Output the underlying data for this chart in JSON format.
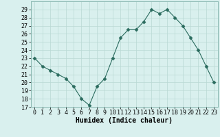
{
  "x": [
    0,
    1,
    2,
    3,
    4,
    5,
    6,
    7,
    8,
    9,
    10,
    11,
    12,
    13,
    14,
    15,
    16,
    17,
    18,
    19,
    20,
    21,
    22,
    23
  ],
  "y": [
    23,
    22,
    21.5,
    21,
    20.5,
    19.5,
    18,
    17.2,
    19.5,
    20.5,
    23,
    25.5,
    26.5,
    26.5,
    27.5,
    29,
    28.5,
    29,
    28,
    27,
    25.5,
    24,
    22,
    20
  ],
  "line_color": "#2a6b5e",
  "marker": "D",
  "marker_size": 2.5,
  "bg_color": "#d9f0ee",
  "grid_color": "#b8d8d4",
  "xlabel": "Humidex (Indice chaleur)",
  "ylim": [
    17,
    30
  ],
  "xlim": [
    -0.5,
    23.5
  ],
  "yticks": [
    17,
    18,
    19,
    20,
    21,
    22,
    23,
    24,
    25,
    26,
    27,
    28,
    29
  ],
  "xticks": [
    0,
    1,
    2,
    3,
    4,
    5,
    6,
    7,
    8,
    9,
    10,
    11,
    12,
    13,
    14,
    15,
    16,
    17,
    18,
    19,
    20,
    21,
    22,
    23
  ],
  "xlabel_fontsize": 7,
  "tick_fontsize": 6
}
